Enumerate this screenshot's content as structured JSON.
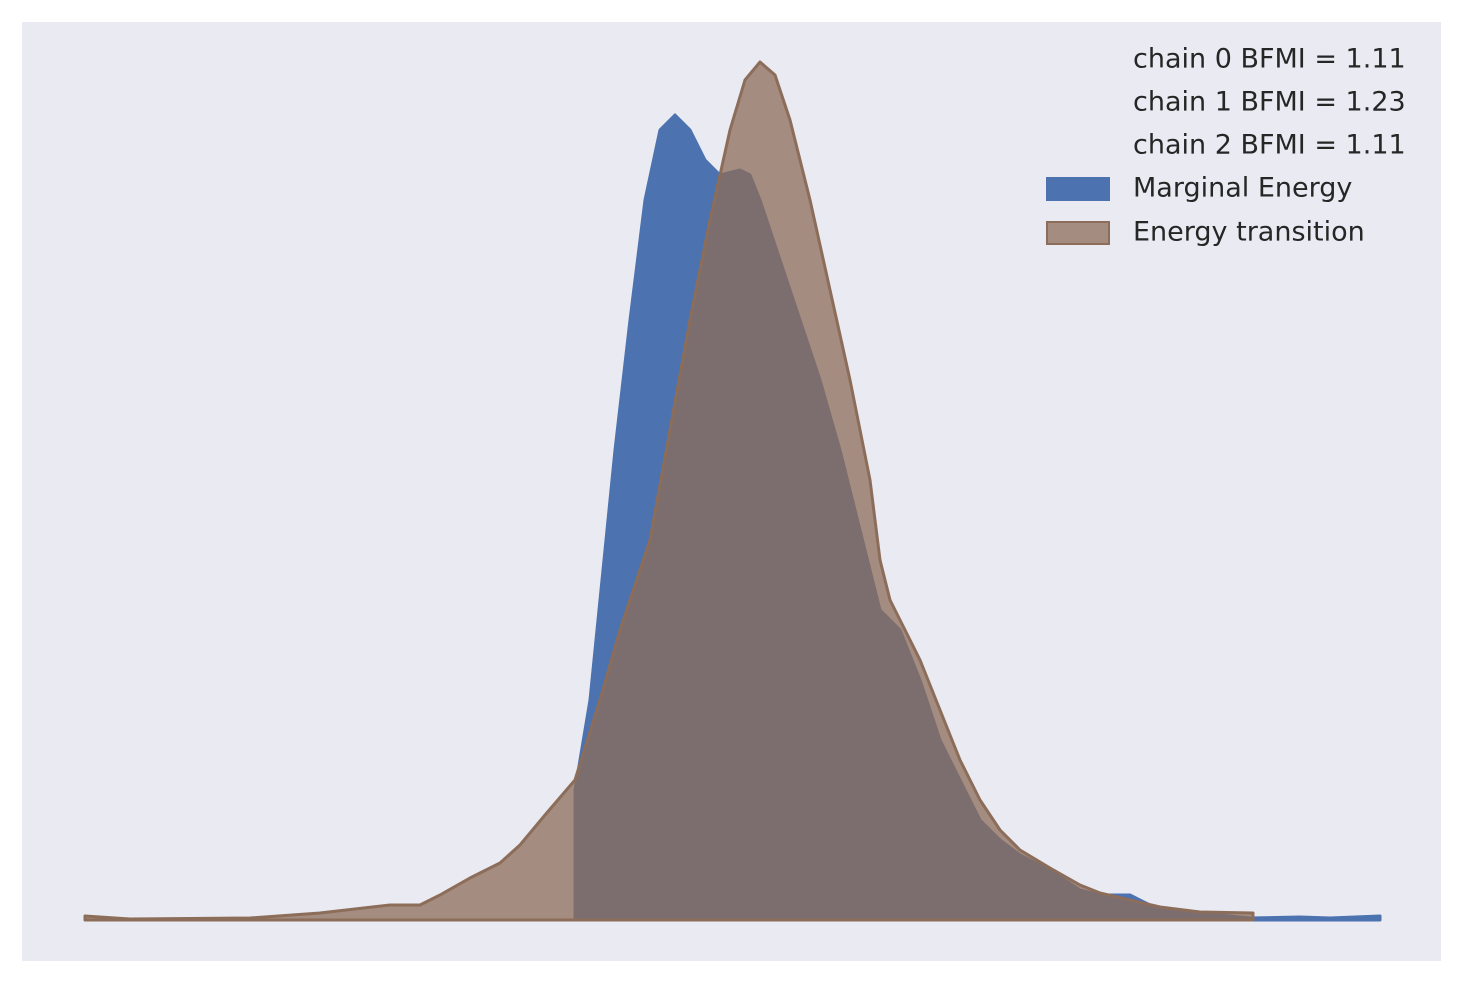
{
  "chart_data": {
    "type": "area",
    "legend_texts": [
      "chain  0 BFMI = 1.11",
      "chain  1 BFMI = 1.23",
      "chain  2 BFMI = 1.11"
    ],
    "legend": "upper right",
    "xlim": [
      -63,
      1356
    ],
    "ylim": [
      -41,
      898
    ],
    "series": [
      {
        "name": "Marginal Energy",
        "color": "#4c72b0",
        "x": [
          490,
          505,
          515,
          530,
          545,
          560,
          575,
          590,
          605,
          620,
          635,
          655,
          665,
          675,
          695,
          715,
          735,
          755,
          775,
          795,
          815,
          835,
          855,
          875,
          895,
          915,
          935,
          965,
          995,
          1015,
          1045,
          1075,
          1105,
          1135,
          1165,
          1215,
          1245,
          1295
        ],
        "values": [
          130,
          220,
          320,
          470,
          600,
          720,
          790,
          805,
          790,
          760,
          745,
          750,
          745,
          720,
          660,
          600,
          540,
          470,
          390,
          310,
          290,
          240,
          180,
          140,
          100,
          80,
          65,
          50,
          30,
          25,
          25,
          10,
          8,
          5,
          2,
          3,
          2,
          4
        ]
      },
      {
        "name": "Energy transition",
        "color": "#8c6d5a",
        "x": [
          0,
          45,
          165,
          235,
          305,
          335,
          355,
          385,
          415,
          435,
          460,
          490,
          515,
          535,
          565,
          585,
          605,
          625,
          645,
          660,
          675,
          690,
          705,
          725,
          745,
          765,
          785,
          795,
          805,
          815,
          835,
          855,
          875,
          895,
          915,
          935,
          965,
          995,
          1015,
          1045,
          1075,
          1115,
          1168
        ],
        "values": [
          4,
          1,
          2,
          7,
          15,
          15,
          25,
          42,
          57,
          75,
          105,
          140,
          220,
          290,
          380,
          490,
          600,
          700,
          790,
          840,
          858,
          845,
          800,
          720,
          630,
          540,
          440,
          360,
          320,
          300,
          260,
          210,
          160,
          120,
          90,
          70,
          52,
          35,
          27,
          20,
          13,
          8,
          7
        ]
      }
    ]
  }
}
